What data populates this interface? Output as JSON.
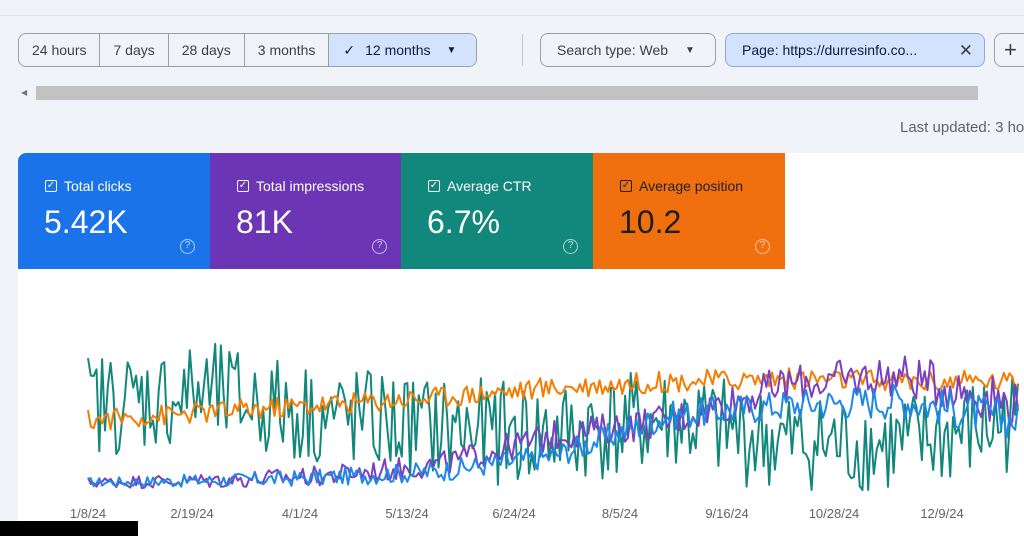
{
  "toolbar": {
    "ranges": [
      "24 hours",
      "7 days",
      "28 days",
      "3 months",
      "12 months"
    ],
    "selected_range": "12 months",
    "search_type": "Search type: Web",
    "page_filter": "Page: https://durresinfo.co...",
    "add_symbol": "+"
  },
  "last_updated": "Last updated: 3 ho",
  "metrics": [
    {
      "label": "Total clicks",
      "value": "5.42K",
      "color": "#1a73e8"
    },
    {
      "label": "Total impressions",
      "value": "81K",
      "color": "#6b35b5"
    },
    {
      "label": "Average CTR",
      "value": "6.7%",
      "color": "#12877b"
    },
    {
      "label": "Average position",
      "value": "10.2",
      "color": "#f0700f"
    }
  ],
  "chart_data": {
    "type": "line",
    "x": [
      "1/8/24",
      "2/19/24",
      "4/1/24",
      "5/13/24",
      "6/24/24",
      "8/5/24",
      "9/16/24",
      "10/28/24",
      "12/9/24"
    ],
    "series": [
      {
        "name": "Total clicks",
        "color": "#1e88e5",
        "values": [
          5,
          6,
          8,
          12,
          22,
          48,
          55,
          58,
          45
        ]
      },
      {
        "name": "Total impressions",
        "color": "#7b3fc4",
        "values": [
          5,
          6,
          9,
          16,
          35,
          45,
          68,
          74,
          55
        ]
      },
      {
        "name": "Average CTR",
        "color": "#12877b",
        "values": [
          55,
          62,
          48,
          40,
          35,
          45,
          30,
          28,
          45
        ]
      },
      {
        "name": "Average position",
        "color": "#f57c00",
        "values": [
          45,
          50,
          55,
          60,
          66,
          70,
          72,
          70,
          70
        ]
      }
    ]
  }
}
